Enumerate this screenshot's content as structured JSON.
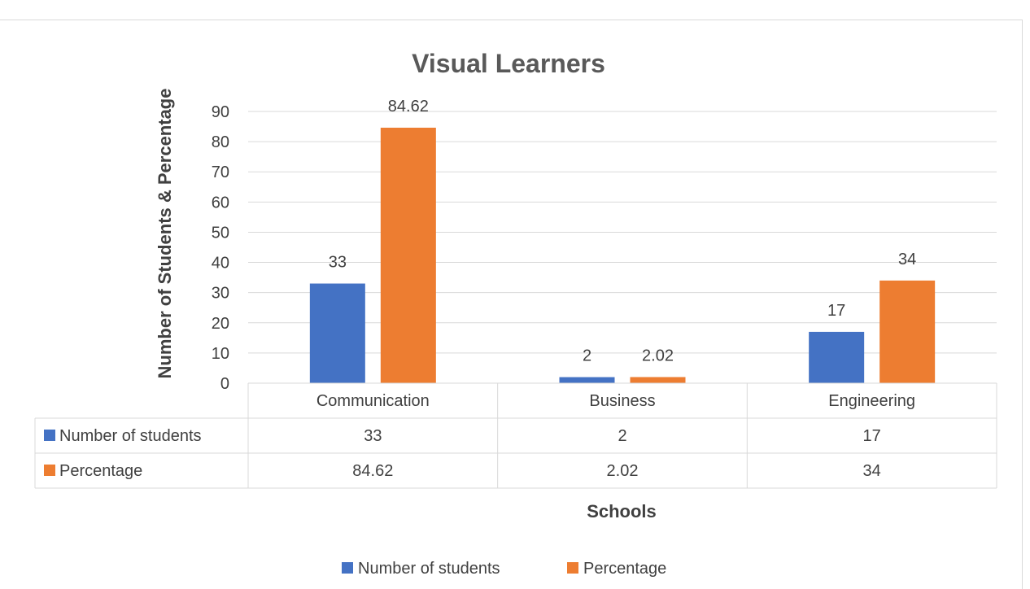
{
  "chart_data": {
    "type": "bar",
    "title": "Visual Learners",
    "xlabel": "Schools",
    "ylabel": "Number of Students & Percentage",
    "categories": [
      "Communication",
      "Business",
      "Engineering"
    ],
    "series": [
      {
        "name": "Number of students",
        "values": [
          33,
          2,
          17
        ],
        "labels": [
          "33",
          "2",
          "17"
        ],
        "color": "#4472c4"
      },
      {
        "name": "Percentage",
        "values": [
          84.62,
          2.02,
          34
        ],
        "labels": [
          "84.62",
          "2.02",
          "34"
        ],
        "color": "#ed7d31"
      }
    ],
    "ylim": [
      0,
      90
    ],
    "yticks": [
      "0",
      "10",
      "20",
      "30",
      "40",
      "50",
      "60",
      "70",
      "80",
      "90"
    ],
    "grid": true,
    "legend_position": "bottom",
    "data_table": true,
    "colors": {
      "gridline": "#d9d9d9",
      "text": "#404040",
      "title": "#595959"
    }
  }
}
